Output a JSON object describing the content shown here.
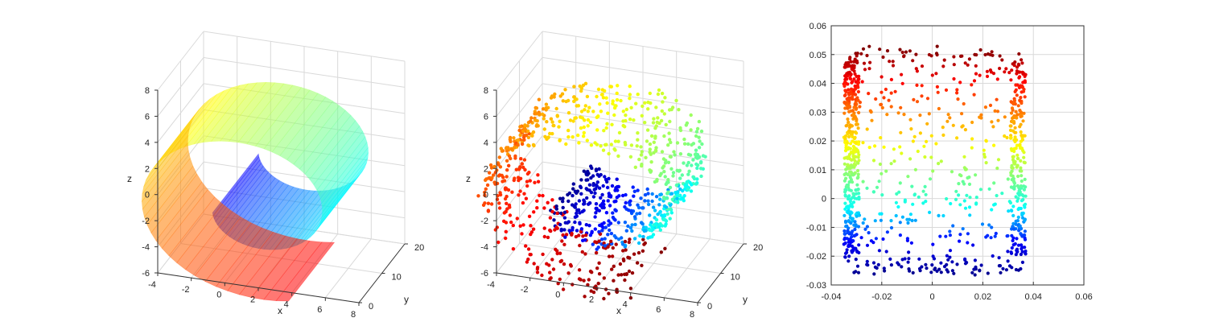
{
  "chart_data": [
    {
      "type": "surface",
      "xlabel": "x",
      "ylabel": "y",
      "zlabel": "z",
      "xlim": [
        -4,
        8
      ],
      "ylim": [
        0,
        20
      ],
      "zlim": [
        -6,
        8
      ],
      "xticks": [
        "-4",
        "-2",
        "0",
        "2",
        "4",
        "6",
        "8"
      ],
      "yticks": [
        "0",
        "10",
        "20"
      ],
      "zticks": [
        "-6",
        "-4",
        "-2",
        "0",
        "2",
        "4",
        "6",
        "8"
      ],
      "grid": true,
      "manifold": {
        "name": "swiss roll",
        "t_range": [
          3.5,
          11.3
        ],
        "height_range": [
          0,
          20
        ]
      },
      "colormap": [
        "#0000ff",
        "#00ffff",
        "#ffff00",
        "#ff0000"
      ],
      "alpha": 0.55
    },
    {
      "type": "scatter3d",
      "xlabel": "x",
      "ylabel": "y",
      "zlabel": "z",
      "xlim": [
        -4,
        8
      ],
      "ylim": [
        0,
        20
      ],
      "zlim": [
        -6,
        8
      ],
      "xticks": [
        "-4",
        "-2",
        "0",
        "2",
        "4",
        "6",
        "8"
      ],
      "yticks": [
        "0",
        "10",
        "20"
      ],
      "zticks": [
        "-6",
        "-4",
        "-2",
        "0",
        "2",
        "4",
        "6",
        "8"
      ],
      "grid": true,
      "n_points": 1000,
      "colormap": [
        "#00008f",
        "#0000ff",
        "#00ffff",
        "#7fff7f",
        "#ffff00",
        "#ff7f00",
        "#ff0000",
        "#7f0000"
      ]
    },
    {
      "type": "scatter",
      "xlim": [
        -0.04,
        0.06
      ],
      "ylim": [
        -0.03,
        0.06
      ],
      "xticks": [
        "-0.04",
        "-0.02",
        "0",
        "0.02",
        "0.04",
        "0.06"
      ],
      "yticks": [
        "-0.03",
        "-0.02",
        "-0.01",
        "0",
        "0.01",
        "0.02",
        "0.03",
        "0.04",
        "0.05",
        "0.06"
      ],
      "grid": true,
      "embedding_xrange": [
        -0.035,
        0.037
      ],
      "embedding_yrange": [
        -0.026,
        0.052
      ],
      "n_points": 1000,
      "colormap": [
        "#00008f",
        "#0000ff",
        "#00ffff",
        "#7fff7f",
        "#ffff00",
        "#ff7f00",
        "#ff0000",
        "#7f0000"
      ]
    }
  ]
}
